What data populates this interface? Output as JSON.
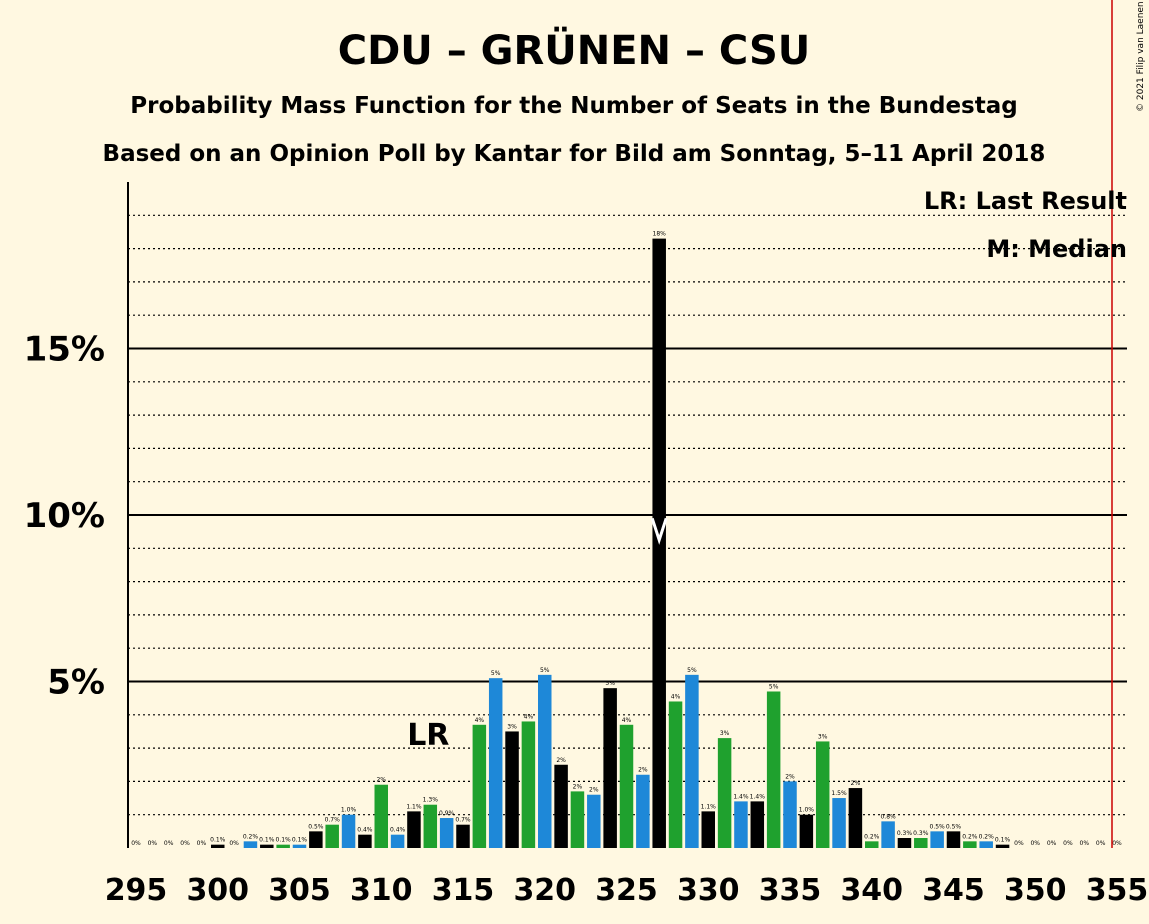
{
  "chart_data": {
    "type": "bar",
    "title": "CDU – GRÜNEN – CSU",
    "subtitle": "Probability Mass Function for the Number of Seats in the Bundestag",
    "subtitle2": "Based on an Opinion Poll by Kantar for Bild am Sonntag, 5–11 April 2018",
    "copyright": "© 2021 Filip van Laenen",
    "legend": {
      "lr": "LR: Last Result",
      "m": "M: Median"
    },
    "lr_label": "LR",
    "lr_seat": 313,
    "median_seat": 327,
    "majority_seat": 355,
    "xlim": [
      295,
      355
    ],
    "ylim": [
      0,
      20
    ],
    "x_ticks": [
      295,
      300,
      305,
      310,
      315,
      320,
      325,
      330,
      335,
      340,
      345,
      350,
      355
    ],
    "x_tick_labels": [
      "295",
      "300",
      "305",
      "310",
      "315",
      "320",
      "325",
      "330",
      "335",
      "340",
      "345",
      "350",
      "355"
    ],
    "y_ticks": [
      5,
      10,
      15
    ],
    "y_tick_labels": [
      "5%",
      "10%",
      "15%"
    ],
    "colors": {
      "green": "#1FA12E",
      "black": "#000000",
      "blue": "#1E88D8",
      "majority": "#CC0000",
      "background": "#FFF8E1"
    },
    "bars": [
      {
        "seat": 295,
        "value": 0.0,
        "label": "0%",
        "color": "green"
      },
      {
        "seat": 296,
        "value": 0.0,
        "label": "0%",
        "color": "black"
      },
      {
        "seat": 297,
        "value": 0.0,
        "label": "0%",
        "color": "blue"
      },
      {
        "seat": 298,
        "value": 0.0,
        "label": "0%",
        "color": "green"
      },
      {
        "seat": 299,
        "value": 0.0,
        "label": "0%",
        "color": "black"
      },
      {
        "seat": 300,
        "value": 0.1,
        "label": "0.1%",
        "color": "black"
      },
      {
        "seat": 301,
        "value": 0.0,
        "label": "0%",
        "color": "green"
      },
      {
        "seat": 302,
        "value": 0.2,
        "label": "0.2%",
        "color": "blue"
      },
      {
        "seat": 303,
        "value": 0.1,
        "label": "0.1%",
        "color": "black"
      },
      {
        "seat": 304,
        "value": 0.1,
        "label": "0.1%",
        "color": "green"
      },
      {
        "seat": 305,
        "value": 0.1,
        "label": "0.1%",
        "color": "blue"
      },
      {
        "seat": 306,
        "value": 0.5,
        "label": "0.5%",
        "color": "black"
      },
      {
        "seat": 307,
        "value": 0.7,
        "label": "0.7%",
        "color": "green"
      },
      {
        "seat": 308,
        "value": 1.0,
        "label": "1.0%",
        "color": "blue"
      },
      {
        "seat": 309,
        "value": 0.4,
        "label": "0.4%",
        "color": "black"
      },
      {
        "seat": 310,
        "value": 1.9,
        "label": "2%",
        "color": "green"
      },
      {
        "seat": 311,
        "value": 0.4,
        "label": "0.4%",
        "color": "blue"
      },
      {
        "seat": 312,
        "value": 1.1,
        "label": "1.1%",
        "color": "black"
      },
      {
        "seat": 313,
        "value": 1.3,
        "label": "1.3%",
        "color": "green"
      },
      {
        "seat": 314,
        "value": 0.9,
        "label": "0.9%",
        "color": "blue"
      },
      {
        "seat": 315,
        "value": 0.7,
        "label": "0.7%",
        "color": "black"
      },
      {
        "seat": 316,
        "value": 3.7,
        "label": "4%",
        "color": "green"
      },
      {
        "seat": 317,
        "value": 5.1,
        "label": "5%",
        "color": "blue"
      },
      {
        "seat": 318,
        "value": 3.5,
        "label": "3%",
        "color": "black"
      },
      {
        "seat": 319,
        "value": 3.8,
        "label": "4%",
        "color": "green"
      },
      {
        "seat": 320,
        "value": 5.2,
        "label": "5%",
        "color": "blue"
      },
      {
        "seat": 321,
        "value": 2.5,
        "label": "2%",
        "color": "black"
      },
      {
        "seat": 322,
        "value": 1.7,
        "label": "2%",
        "color": "green"
      },
      {
        "seat": 323,
        "value": 1.6,
        "label": "2%",
        "color": "blue"
      },
      {
        "seat": 324,
        "value": 4.8,
        "label": "5%",
        "color": "black"
      },
      {
        "seat": 325,
        "value": 3.7,
        "label": "4%",
        "color": "green"
      },
      {
        "seat": 326,
        "value": 2.2,
        "label": "2%",
        "color": "blue"
      },
      {
        "seat": 327,
        "value": 18.3,
        "label": "18%",
        "color": "black"
      },
      {
        "seat": 328,
        "value": 4.4,
        "label": "4%",
        "color": "green"
      },
      {
        "seat": 329,
        "value": 5.2,
        "label": "5%",
        "color": "blue"
      },
      {
        "seat": 330,
        "value": 1.1,
        "label": "1.1%",
        "color": "black"
      },
      {
        "seat": 331,
        "value": 3.3,
        "label": "3%",
        "color": "green"
      },
      {
        "seat": 332,
        "value": 1.4,
        "label": "1.4%",
        "color": "blue"
      },
      {
        "seat": 333,
        "value": 1.4,
        "label": "1.4%",
        "color": "black"
      },
      {
        "seat": 334,
        "value": 4.7,
        "label": "5%",
        "color": "green"
      },
      {
        "seat": 335,
        "value": 2.0,
        "label": "2%",
        "color": "blue"
      },
      {
        "seat": 336,
        "value": 1.0,
        "label": "1.0%",
        "color": "black"
      },
      {
        "seat": 337,
        "value": 3.2,
        "label": "3%",
        "color": "green"
      },
      {
        "seat": 338,
        "value": 1.5,
        "label": "1.5%",
        "color": "blue"
      },
      {
        "seat": 339,
        "value": 1.8,
        "label": "2%",
        "color": "black"
      },
      {
        "seat": 340,
        "value": 0.2,
        "label": "0.2%",
        "color": "green"
      },
      {
        "seat": 341,
        "value": 0.8,
        "label": "0.8%",
        "color": "blue"
      },
      {
        "seat": 342,
        "value": 0.3,
        "label": "0.3%",
        "color": "black"
      },
      {
        "seat": 343,
        "value": 0.3,
        "label": "0.3%",
        "color": "green"
      },
      {
        "seat": 344,
        "value": 0.5,
        "label": "0.5%",
        "color": "blue"
      },
      {
        "seat": 345,
        "value": 0.5,
        "label": "0.5%",
        "color": "black"
      },
      {
        "seat": 346,
        "value": 0.2,
        "label": "0.2%",
        "color": "green"
      },
      {
        "seat": 347,
        "value": 0.2,
        "label": "0.2%",
        "color": "blue"
      },
      {
        "seat": 348,
        "value": 0.1,
        "label": "0.1%",
        "color": "black"
      },
      {
        "seat": 349,
        "value": 0.0,
        "label": "0%",
        "color": "green"
      },
      {
        "seat": 350,
        "value": 0.0,
        "label": "0%",
        "color": "blue"
      },
      {
        "seat": 351,
        "value": 0.0,
        "label": "0%",
        "color": "black"
      },
      {
        "seat": 352,
        "value": 0.0,
        "label": "0%",
        "color": "green"
      },
      {
        "seat": 353,
        "value": 0.0,
        "label": "0%",
        "color": "blue"
      },
      {
        "seat": 354,
        "value": 0.0,
        "label": "0%",
        "color": "black"
      },
      {
        "seat": 355,
        "value": 0.0,
        "label": "0%",
        "color": "green"
      }
    ]
  }
}
